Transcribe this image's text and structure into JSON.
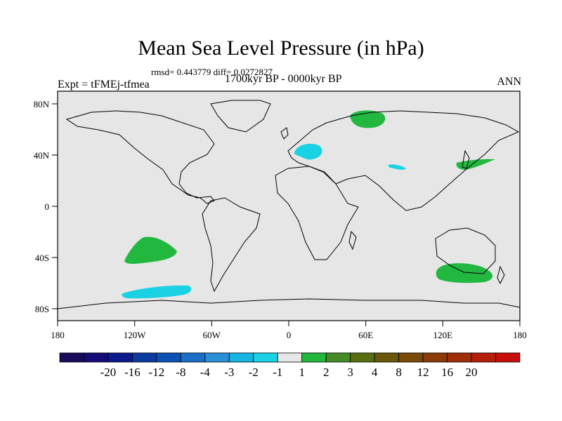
{
  "title": "Mean Sea Level Pressure (in hPa)",
  "stats": "rmsd= 0.443779 diff= 0.0272827",
  "experiment": "Expt = tFMEj-tfmea",
  "period": "1700kyr BP - 0000kyr BP",
  "season": "ANN",
  "axes": {
    "lon_labels": [
      "180",
      "120W",
      "60W",
      "0",
      "60E",
      "120E",
      "180"
    ],
    "lat_labels": [
      "80N",
      "40N",
      "0",
      "40S",
      "80S"
    ]
  },
  "colorbar": {
    "colors": [
      "#1a0a5c",
      "#140a78",
      "#0b1a8c",
      "#0a3ba0",
      "#0a52b4",
      "#1a6ec8",
      "#2a8ed8",
      "#16b4e0",
      "#1ad2e4",
      "#e6e6e6",
      "#22b840",
      "#468c26",
      "#586e10",
      "#6a5808",
      "#7a4a06",
      "#8c3a06",
      "#a02e08",
      "#b41e0a",
      "#c80e0a"
    ],
    "labels": [
      "-20",
      "-16",
      "-12",
      "-8",
      "-4",
      "-3",
      "-2",
      "-1",
      "1",
      "2",
      "3",
      "4",
      "8",
      "12",
      "16",
      "20"
    ]
  },
  "anomaly_regions": [
    {
      "name": "scandinavia-russia-positive",
      "color": "#22b840"
    },
    {
      "name": "europe-negative",
      "color": "#1ad2e4"
    },
    {
      "name": "central-asia-negative",
      "color": "#1ad2e4"
    },
    {
      "name": "japan-positive",
      "color": "#22b840"
    },
    {
      "name": "south-pacific-positive",
      "color": "#22b840"
    },
    {
      "name": "southern-ocean-negative",
      "color": "#1ad2e4"
    },
    {
      "name": "south-of-australia-positive",
      "color": "#22b840"
    }
  ]
}
